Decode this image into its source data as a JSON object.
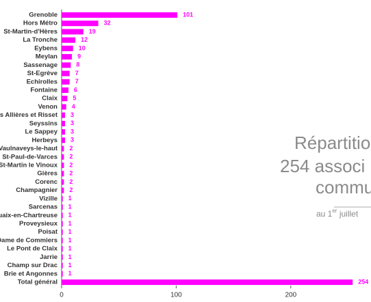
{
  "chart_data": {
    "type": "bar",
    "orientation": "horizontal",
    "title_lines": [
      "Répartitio",
      "254 associ",
      "commu"
    ],
    "subtitle_parts": [
      "au 1",
      "er",
      " juillet"
    ],
    "categories": [
      "Grenoble",
      "Hors Métro",
      "St-Martin-d'Hères",
      "La Tronche",
      "Eybens",
      "Meylan",
      "Sassenage",
      "St-Egrève",
      "Echirolles",
      "Fontaine",
      "Claix",
      "Venon",
      "rces Allières et Risset",
      "Seyssins",
      "Le Sappey",
      "Herbeys",
      "Vaulnaveys-le-haut",
      "St-Paul-de-Varces",
      "St-Martin le Vinoux",
      "Gières",
      "Corenc",
      "Champagnier",
      "Vizille",
      "Sarcenas",
      "Quaix-en-Chartreuse",
      "Proveysieux",
      "Poisat",
      "e Dame de Commiers",
      "Le Pont de Claix",
      "Jarrie",
      "Champ sur Drac",
      "Brie et Angonnes",
      "Total général"
    ],
    "values": [
      101,
      32,
      19,
      12,
      10,
      9,
      8,
      7,
      7,
      6,
      5,
      4,
      3,
      3,
      3,
      3,
      2,
      2,
      2,
      2,
      2,
      2,
      1,
      1,
      1,
      1,
      1,
      1,
      1,
      1,
      1,
      1,
      254
    ],
    "color": "#ff00ff",
    "xlim": [
      0,
      270
    ],
    "xticks": [
      0,
      100,
      200
    ]
  }
}
